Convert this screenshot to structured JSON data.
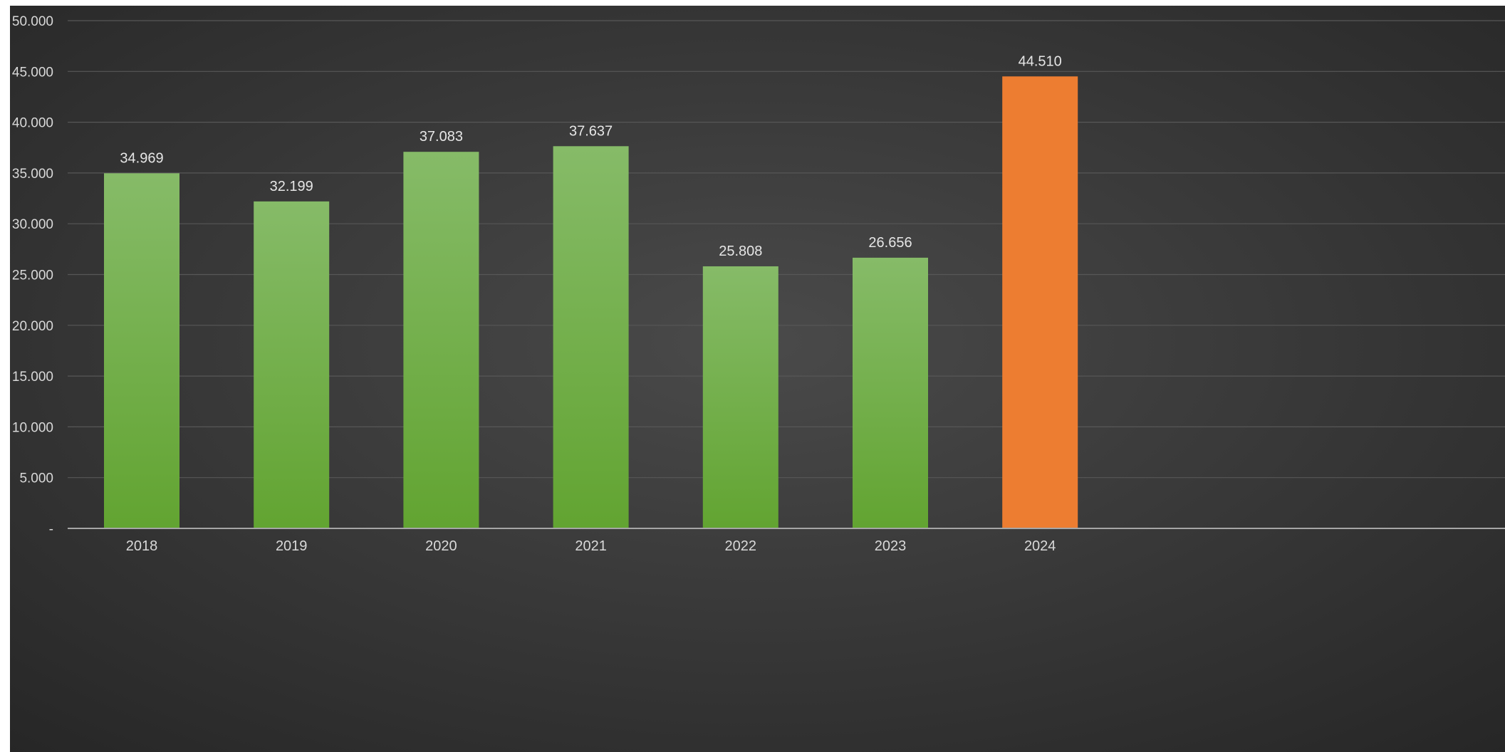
{
  "chart_data": {
    "type": "bar",
    "title": "",
    "xlabel": "",
    "ylabel": "",
    "categories": [
      "2018",
      "2019",
      "2020",
      "2021",
      "2022",
      "2023",
      "2024"
    ],
    "values": [
      34969,
      32199,
      37083,
      37637,
      25808,
      26656,
      44510
    ],
    "value_labels": [
      "34.969",
      "32.199",
      "37.083",
      "37.637",
      "25.808",
      "26.656",
      "44.510"
    ],
    "ylim": [
      0,
      50000
    ],
    "yticks": [
      0,
      5000,
      10000,
      15000,
      20000,
      25000,
      30000,
      35000,
      40000,
      45000,
      50000
    ],
    "ytick_labels": [
      "-",
      "5.000",
      "10.000",
      "15.000",
      "20.000",
      "25.000",
      "30.000",
      "35.000",
      "40.000",
      "45.000",
      "50.000"
    ],
    "grid": true,
    "legend": "none",
    "colors": {
      "bar_default_top": "#86bb68",
      "bar_default_bottom": "#62a431",
      "bar_highlight": "#ed7d31",
      "bar_highlight_index": 6,
      "background_center": "#4a4a4a",
      "background_edge": "#262626",
      "gridline": "#575757",
      "axis_line": "#a6a6a6"
    }
  }
}
